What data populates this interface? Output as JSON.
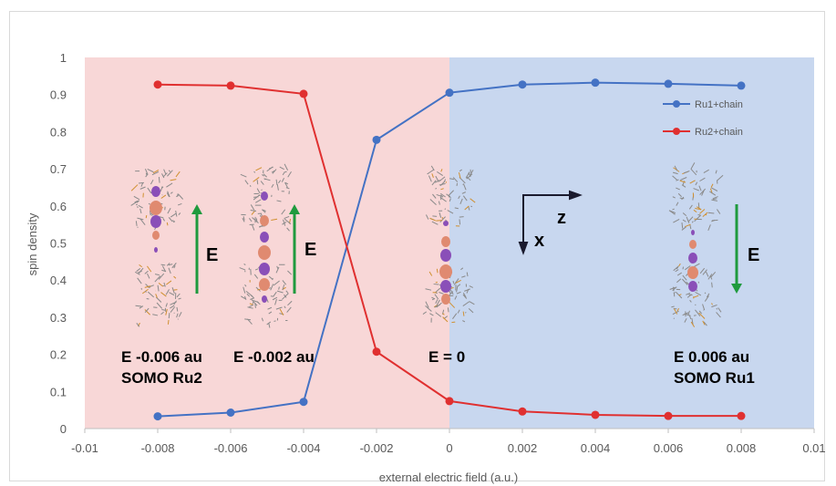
{
  "chart_data": {
    "type": "line",
    "xlabel": "external electric field (a.u.)",
    "ylabel": "spin density",
    "xlim": [
      -0.01,
      0.01
    ],
    "ylim": [
      0,
      1
    ],
    "x_ticks": [
      "-0.01",
      "-0.008",
      "-0.006",
      "-0.004",
      "-0.002",
      "0",
      "0.002",
      "0.004",
      "0.006",
      "0.008",
      "0.01"
    ],
    "y_ticks": [
      "0",
      "0.1",
      "0.2",
      "0.3",
      "0.4",
      "0.5",
      "0.6",
      "0.7",
      "0.8",
      "0.9",
      "1"
    ],
    "legend_position": "top-right",
    "regions": [
      {
        "from": -0.01,
        "to": 0,
        "color": "#f8d7d7"
      },
      {
        "from": 0,
        "to": 0.01,
        "color": "#c8d7ef"
      }
    ],
    "series": [
      {
        "name": "Ru1+chain",
        "color": "#4472c4",
        "x": [
          -0.008,
          -0.006,
          -0.004,
          -0.002,
          0,
          0.002,
          0.004,
          0.006,
          0.008
        ],
        "y": [
          0.033,
          0.043,
          0.072,
          0.778,
          0.905,
          0.927,
          0.932,
          0.929,
          0.924
        ]
      },
      {
        "name": "Ru2+chain",
        "color": "#e03030",
        "x": [
          -0.008,
          -0.006,
          -0.004,
          -0.002,
          0,
          0.002,
          0.004,
          0.006,
          0.008
        ],
        "y": [
          0.927,
          0.924,
          0.902,
          0.207,
          0.074,
          0.046,
          0.037,
          0.034,
          0.034
        ]
      }
    ],
    "annotations": {
      "panel1_line1": "E -0.006 au",
      "panel1_line2": "SOMO Ru2",
      "panel2_line1": "E -0.002 au",
      "panel3_line1": "E = 0",
      "panel4_line1": "E 0.006 au",
      "panel4_line2": "SOMO Ru1",
      "field_symbol": "E",
      "axis_z": "z",
      "axis_x": "x"
    },
    "arrow_color": "#1f9a3e"
  }
}
